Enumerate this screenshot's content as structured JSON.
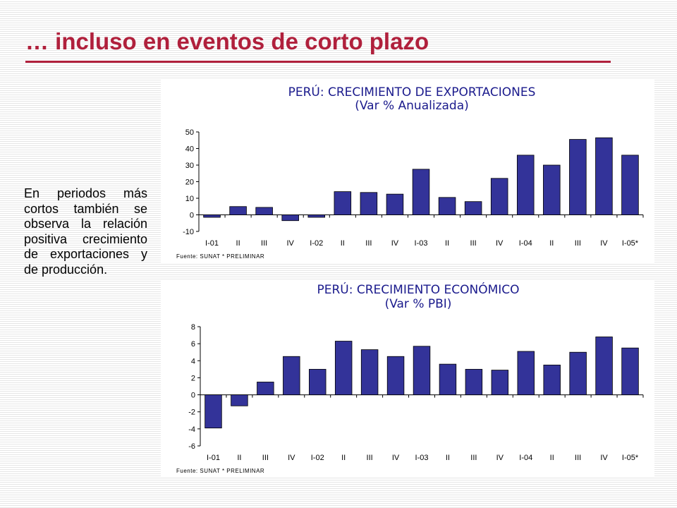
{
  "slide": {
    "title": "… incluso en eventos de corto plazo",
    "body": "En periodos más cortos también se observa la relación positiva crecimiento de exportaciones y de producción."
  },
  "colors": {
    "title": "#b0203c",
    "bar": "#333399",
    "chart_title": "#1a1a8c"
  },
  "chart_data": [
    {
      "type": "bar",
      "title": "PERÚ: CRECIMIENTO DE EXPORTACIONES",
      "subtitle": "(Var % Anualizada)",
      "source": "Fuente: SUNAT * PRELIMINAR",
      "categories": [
        "I-01",
        "II",
        "III",
        "IV",
        "I-02",
        "II",
        "III",
        "IV",
        "I-03",
        "II",
        "III",
        "IV",
        "I-04",
        "II",
        "III",
        "IV",
        "I-05*"
      ],
      "values": [
        -1.5,
        5,
        4.5,
        -3.5,
        -1.5,
        14,
        13.5,
        12.5,
        27.5,
        10.5,
        8,
        22,
        36,
        30,
        45.5,
        46.5,
        36
      ],
      "ylim": [
        -10,
        50
      ],
      "yticks": [
        "50",
        "40",
        "30",
        "20",
        "10",
        "0",
        "-10"
      ],
      "grid": false,
      "legend": "none"
    },
    {
      "type": "bar",
      "title": "PERÚ: CRECIMIENTO ECONÓMICO",
      "subtitle": "(Var % PBI)",
      "source": "Fuente: SUNAT * PRELIMINAR",
      "categories": [
        "I-01",
        "II",
        "III",
        "IV",
        "I-02",
        "II",
        "III",
        "IV",
        "I-03",
        "II",
        "III",
        "IV",
        "I-04",
        "II",
        "III",
        "IV",
        "I-05*"
      ],
      "values": [
        -3.9,
        -1.3,
        1.5,
        4.5,
        3,
        6.3,
        5.3,
        4.5,
        5.7,
        3.6,
        3,
        2.9,
        5.1,
        3.5,
        5,
        6.8,
        5.5
      ],
      "ylim": [
        -6,
        8
      ],
      "yticks": [
        "8",
        "6",
        "4",
        "2",
        "0",
        "-2",
        "-4",
        "-6"
      ],
      "grid": false,
      "legend": "none"
    }
  ]
}
